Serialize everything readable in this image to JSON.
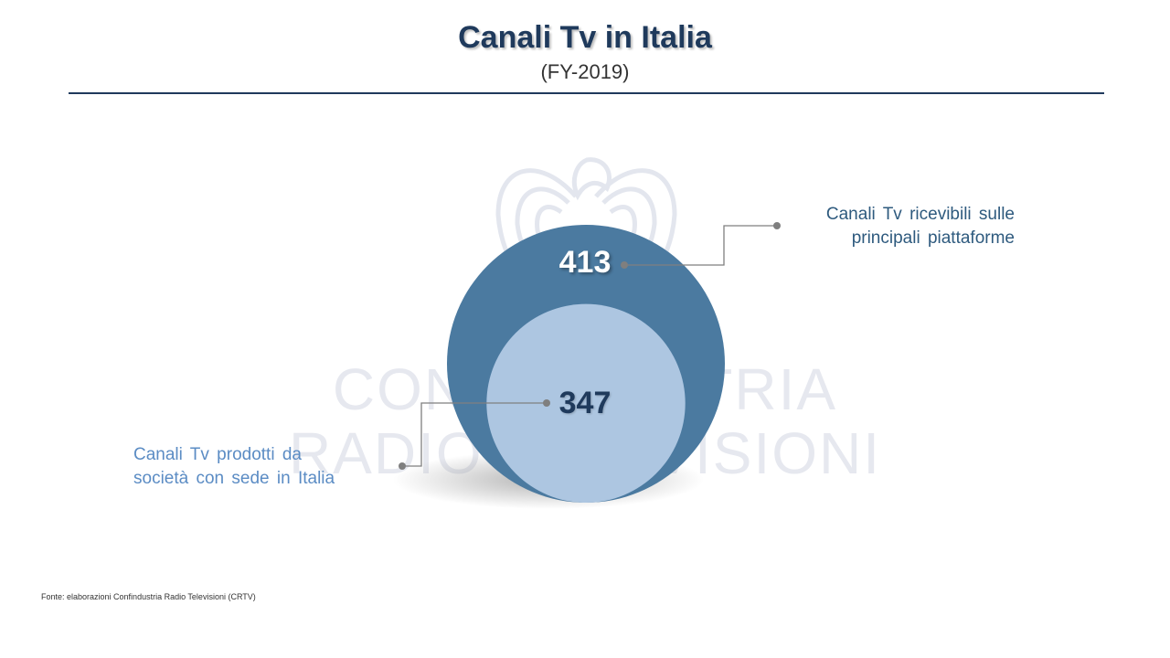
{
  "header": {
    "title": "Canali Tv in Italia",
    "subtitle": "(FY-2019)"
  },
  "watermark": {
    "line1": "CONFINDUSTRIA",
    "line2": "RADIO TELEVISIONI"
  },
  "colors": {
    "title": "#1f3a5c",
    "outer_circle": "#4b7aa0",
    "inner_circle": "#adc6e1",
    "outer_label": "#2e5a7e",
    "inner_label": "#5b8cc4"
  },
  "chart_data": {
    "type": "nested-circles",
    "title": "Canali Tv in Italia",
    "subtitle": "(FY-2019)",
    "series": [
      {
        "name": "Canali Tv ricevibili sulle principali piattaforme",
        "value": 413
      },
      {
        "name": "Canali Tv prodotti da società con sede in Italia",
        "value": 347
      }
    ],
    "labels": {
      "outer": [
        "Canali Tv ricevibili sulle",
        "principali piattaforme"
      ],
      "inner": [
        "Canali Tv prodotti da",
        "società con sede in Italia"
      ]
    },
    "value_labels": {
      "outer": "413",
      "inner": "347"
    }
  },
  "footer": {
    "source": "Fonte: elaborazioni Confindustria Radio Televisioni (CRTV)"
  }
}
